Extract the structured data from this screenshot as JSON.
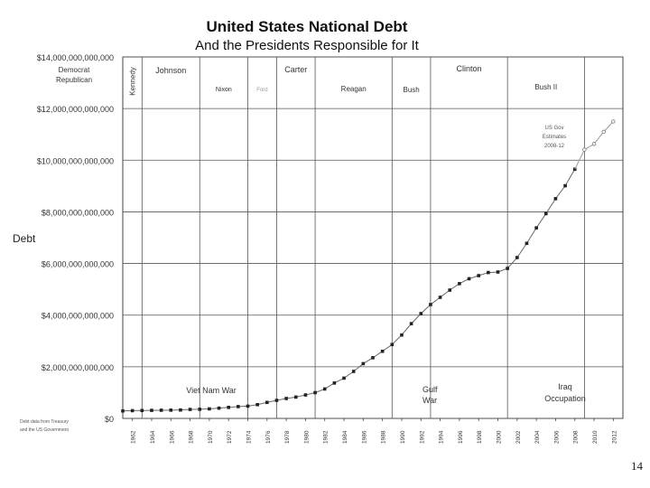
{
  "slide": {
    "page_number": "14"
  },
  "chart_data": {
    "type": "line",
    "title": "United States National Debt",
    "subtitle": "And the Presidents Responsible for It",
    "ylabel": "Debt",
    "xlabel": "",
    "ylim": [
      0,
      14000000000000
    ],
    "xlim": [
      1961,
      2013
    ],
    "grid": true,
    "y_ticks": [
      {
        "value": 0,
        "label": "$0"
      },
      {
        "value": 2000000000000,
        "label": "$2,000,000,000,000"
      },
      {
        "value": 4000000000000,
        "label": "$4,000,000,000,000"
      },
      {
        "value": 6000000000000,
        "label": "$6,000,000,000,000"
      },
      {
        "value": 8000000000000,
        "label": "$8,000,000,000,000"
      },
      {
        "value": 10000000000000,
        "label": "$10,000,000,000,000"
      },
      {
        "value": 12000000000000,
        "label": "$12,000,000,000,000"
      },
      {
        "value": 14000000000000,
        "label": "$14,000,000,000,000"
      }
    ],
    "x_ticks": [
      1962,
      1964,
      1966,
      1968,
      1970,
      1972,
      1974,
      1976,
      1978,
      1980,
      1982,
      1984,
      1986,
      1988,
      1990,
      1992,
      1994,
      1996,
      1998,
      2000,
      2002,
      2004,
      2006,
      2008,
      2010,
      2012
    ],
    "party_legend": [
      "Democrat",
      "Republican"
    ],
    "presidents": [
      {
        "name": "Kennedy",
        "start": 1961,
        "end": 1963,
        "vertical": true
      },
      {
        "name": "Johnson",
        "start": 1963,
        "end": 1969
      },
      {
        "name": "Nixon",
        "start": 1969,
        "end": 1974
      },
      {
        "name": "Ford",
        "start": 1974,
        "end": 1977
      },
      {
        "name": "Carter",
        "start": 1977,
        "end": 1981
      },
      {
        "name": "Reagan",
        "start": 1981,
        "end": 1989
      },
      {
        "name": "Bush",
        "start": 1989,
        "end": 1993
      },
      {
        "name": "Clinton",
        "start": 1993,
        "end": 2001
      },
      {
        "name": "Bush II",
        "start": 2001,
        "end": 2009
      }
    ],
    "events": [
      {
        "label": "Viet Nam War"
      },
      {
        "label": "Gulf War"
      },
      {
        "label": "Iraq Occupation"
      }
    ],
    "estimate_note": "US Gov Estimates 2008-12",
    "source_note": "Debt data from Treasury and the US Government",
    "series": [
      {
        "values": [
          [
            1961,
            290000000000
          ],
          [
            1962,
            300000000000
          ],
          [
            1963,
            306000000000
          ],
          [
            1964,
            312000000000
          ],
          [
            1965,
            317000000000
          ],
          [
            1966,
            320000000000
          ],
          [
            1967,
            326000000000
          ],
          [
            1968,
            348000000000
          ],
          [
            1969,
            354000000000
          ],
          [
            1970,
            370000000000
          ],
          [
            1971,
            398000000000
          ],
          [
            1972,
            427000000000
          ],
          [
            1973,
            458000000000
          ],
          [
            1974,
            475000000000
          ],
          [
            1975,
            533000000000
          ],
          [
            1976,
            620000000000
          ],
          [
            1977,
            699000000000
          ],
          [
            1978,
            772000000000
          ],
          [
            1979,
            827000000000
          ],
          [
            1980,
            908000000000
          ],
          [
            1981,
            998000000000
          ],
          [
            1982,
            1140000000000
          ],
          [
            1983,
            1370000000000
          ],
          [
            1984,
            1560000000000
          ],
          [
            1985,
            1820000000000
          ],
          [
            1986,
            2120000000000
          ],
          [
            1987,
            2350000000000
          ],
          [
            1988,
            2600000000000
          ],
          [
            1989,
            2860000000000
          ],
          [
            1990,
            3230000000000
          ],
          [
            1991,
            3670000000000
          ],
          [
            1992,
            4060000000000
          ],
          [
            1993,
            4410000000000
          ],
          [
            1994,
            4690000000000
          ],
          [
            1995,
            4970000000000
          ],
          [
            1996,
            5220000000000
          ],
          [
            1997,
            5410000000000
          ],
          [
            1998,
            5530000000000
          ],
          [
            1999,
            5650000000000
          ],
          [
            2000,
            5670000000000
          ],
          [
            2001,
            5810000000000
          ],
          [
            2002,
            6230000000000
          ],
          [
            2003,
            6780000000000
          ],
          [
            2004,
            7380000000000
          ],
          [
            2005,
            7930000000000
          ],
          [
            2006,
            8510000000000
          ],
          [
            2007,
            9010000000000
          ],
          [
            2008,
            9650000000000
          ]
        ]
      },
      {
        "values": [
          [
            2008,
            9650000000000
          ],
          [
            2009,
            10410000000000
          ],
          [
            2010,
            10630000000000
          ],
          [
            2011,
            11100000000000
          ],
          [
            2012,
            11500000000000
          ]
        ]
      }
    ]
  }
}
